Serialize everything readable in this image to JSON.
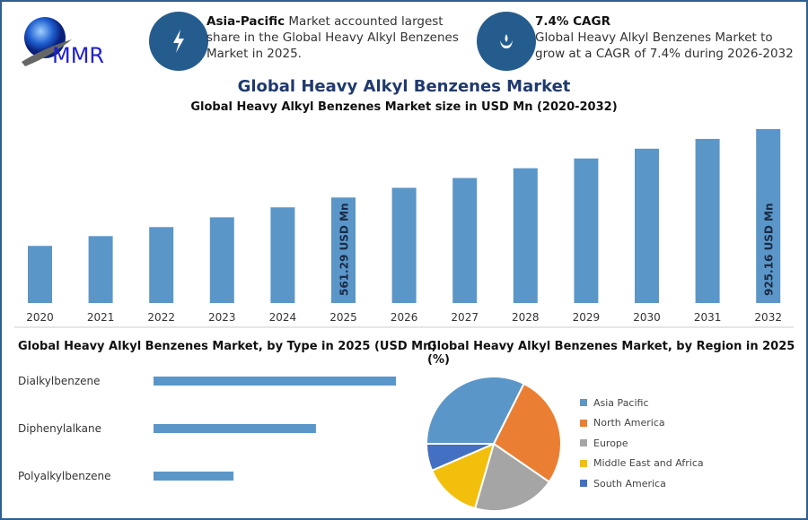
{
  "logo": {
    "text": "MMR"
  },
  "highlights": [
    {
      "icon": "lightning-icon",
      "bold": "Asia-Pacific",
      "text": " Market accounted largest share in the Global Heavy Alkyl Benzenes Market in 2025."
    },
    {
      "icon": "flame-hand-icon",
      "bold": "7.4% CAGR",
      "text": "Global Heavy Alkyl Benzenes Market to grow at a CAGR of 7.4% during 2026-2032"
    }
  ],
  "colors": {
    "accent": "#255c8e",
    "bar": "#5b96c8",
    "title": "#1f3a6e"
  },
  "main_title": "Global Heavy Alkyl Benzenes Market",
  "chart_data": [
    {
      "type": "bar",
      "title": "Global Heavy Alkyl Benzenes Market size in USD Mn (2020-2032)",
      "categories": [
        "2020",
        "2021",
        "2022",
        "2023",
        "2024",
        "2025",
        "2026",
        "2027",
        "2028",
        "2029",
        "2030",
        "2031",
        "2032"
      ],
      "values": [
        304,
        356,
        404,
        456,
        509,
        561.29,
        613,
        665,
        717,
        769,
        821,
        873,
        925.16
      ],
      "data_labels": {
        "2025": "561.29 USD Mn",
        "2032": "925.16 USD Mn"
      },
      "grid": false,
      "ylim": [
        0,
        925.16
      ]
    },
    {
      "type": "bar",
      "orientation": "horizontal",
      "title": "Global Heavy Alkyl Benzenes Market, by Type in 2025 (USD Mn)",
      "categories": [
        "Dialkylbenzene",
        "Diphenylalkane",
        "Polyalkylbenzene"
      ],
      "values": [
        1.0,
        0.67,
        0.33
      ],
      "grid": false
    },
    {
      "type": "pie",
      "title": "Global Heavy Alkyl Benzenes Market, by Region in 2025 (%)",
      "categories": [
        "Asia Pacific",
        "North America",
        "Europe",
        "Middle East and Africa",
        "South America"
      ],
      "values": [
        32.4,
        27.2,
        19.9,
        14.0,
        6.5
      ],
      "colors": [
        "#5b96c8",
        "#ea7f33",
        "#a5a5a5",
        "#f2bf0c",
        "#4470c4"
      ],
      "legend": "right"
    }
  ]
}
